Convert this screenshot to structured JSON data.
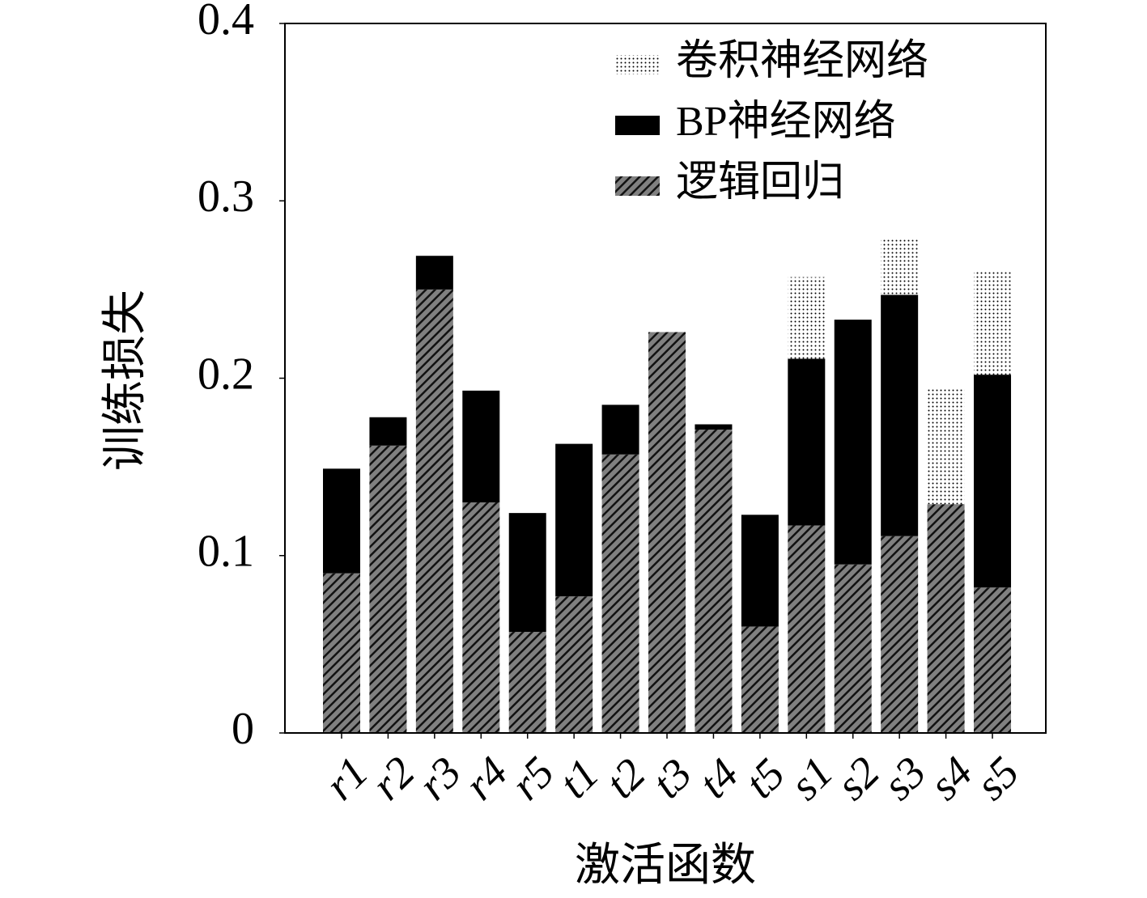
{
  "chart_data": {
    "type": "stacked_bar",
    "xlabel": "激活函数",
    "ylabel": "训练损失",
    "categories": [
      "r1",
      "r2",
      "r3",
      "r4",
      "r5",
      "t1",
      "t2",
      "t3",
      "t4",
      "t5",
      "s1",
      "s2",
      "s3",
      "s4",
      "s5"
    ],
    "series": [
      {
        "name": "卷积神经网络",
        "color": "#ffffff",
        "pattern": "dots",
        "values": [
          0,
          0,
          0,
          0,
          0,
          0,
          0,
          0,
          0,
          0,
          0.046,
          0,
          0.031,
          0.065,
          0.058
        ]
      },
      {
        "name": "BP神经网络",
        "color": "#000000",
        "pattern": "solid",
        "values": [
          0.059,
          0.016,
          0.019,
          0.063,
          0.067,
          0.086,
          0.028,
          0,
          0.003,
          0.063,
          0.094,
          0.138,
          0.136,
          0,
          0.12
        ]
      },
      {
        "name": "逻辑回归",
        "color": "#808080",
        "pattern": "diagonal",
        "values": [
          0.09,
          0.162,
          0.25,
          0.13,
          0.057,
          0.077,
          0.157,
          0.226,
          0.171,
          0.06,
          0.117,
          0.095,
          0.111,
          0.129,
          0.082
        ]
      }
    ],
    "ylim": [
      0,
      0.4
    ],
    "yticks": [
      0,
      0.1,
      0.2,
      0.3,
      0.4
    ],
    "legend": "upper right"
  }
}
